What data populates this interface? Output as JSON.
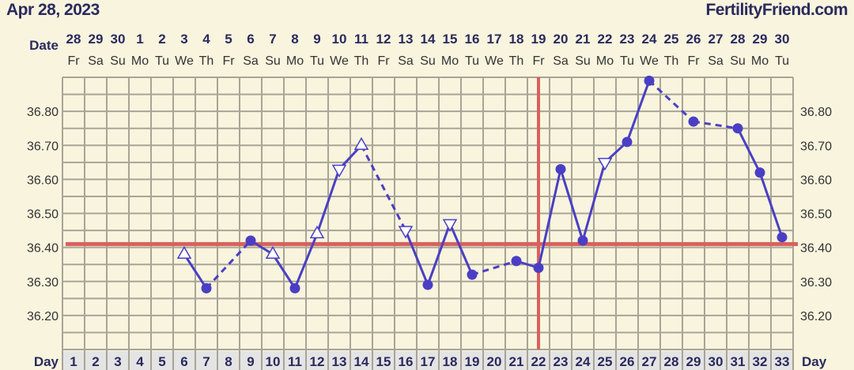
{
  "header": {
    "date": "Apr 28, 2023",
    "brand": "FertilityFriend.com"
  },
  "chart_data": {
    "type": "line",
    "row_labels": {
      "date": "Date",
      "day": "Day"
    },
    "dates": [
      "28",
      "29",
      "30",
      "1",
      "2",
      "3",
      "4",
      "5",
      "6",
      "7",
      "8",
      "9",
      "10",
      "11",
      "12",
      "13",
      "14",
      "15",
      "16",
      "17",
      "18",
      "19",
      "20",
      "21",
      "22",
      "23",
      "24",
      "25",
      "26",
      "27",
      "28",
      "29",
      "30"
    ],
    "weekdays": [
      "Fr",
      "Sa",
      "Su",
      "Mo",
      "Tu",
      "We",
      "Th",
      "Fr",
      "Sa",
      "Su",
      "Mo",
      "Tu",
      "We",
      "Th",
      "Fr",
      "Sa",
      "Su",
      "Mo",
      "Tu",
      "We",
      "Th",
      "Fr",
      "Sa",
      "Su",
      "Mo",
      "Tu",
      "We",
      "Th",
      "Fr",
      "Sa",
      "Su",
      "Mo",
      "Tu"
    ],
    "days": [
      1,
      2,
      3,
      4,
      5,
      6,
      7,
      8,
      9,
      10,
      11,
      12,
      13,
      14,
      15,
      16,
      17,
      18,
      19,
      20,
      21,
      22,
      23,
      24,
      25,
      26,
      27,
      28,
      29,
      30,
      31,
      32,
      33
    ],
    "yticks": [
      "36.20",
      "36.30",
      "36.40",
      "36.50",
      "36.60",
      "36.70",
      "36.80"
    ],
    "ylim": [
      36.1,
      36.9
    ],
    "grid": true,
    "coverline": 36.41,
    "ovulation_day": 22,
    "points": [
      {
        "day": 6,
        "temp": 36.38,
        "marker": "triangle-up"
      },
      {
        "day": 7,
        "temp": 36.28,
        "marker": "dot"
      },
      {
        "day": 9,
        "temp": 36.42,
        "marker": "dot"
      },
      {
        "day": 10,
        "temp": 36.38,
        "marker": "triangle-up"
      },
      {
        "day": 11,
        "temp": 36.28,
        "marker": "dot"
      },
      {
        "day": 12,
        "temp": 36.44,
        "marker": "triangle-up"
      },
      {
        "day": 13,
        "temp": 36.63,
        "marker": "triangle-down"
      },
      {
        "day": 14,
        "temp": 36.7,
        "marker": "triangle-up"
      },
      {
        "day": 16,
        "temp": 36.45,
        "marker": "triangle-down"
      },
      {
        "day": 17,
        "temp": 36.29,
        "marker": "dot"
      },
      {
        "day": 18,
        "temp": 36.47,
        "marker": "triangle-down"
      },
      {
        "day": 19,
        "temp": 36.32,
        "marker": "dot"
      },
      {
        "day": 21,
        "temp": 36.36,
        "marker": "dot"
      },
      {
        "day": 22,
        "temp": 36.34,
        "marker": "dot"
      },
      {
        "day": 23,
        "temp": 36.63,
        "marker": "dot"
      },
      {
        "day": 24,
        "temp": 36.42,
        "marker": "dot"
      },
      {
        "day": 25,
        "temp": 36.65,
        "marker": "triangle-down"
      },
      {
        "day": 26,
        "temp": 36.71,
        "marker": "dot"
      },
      {
        "day": 27,
        "temp": 36.89,
        "marker": "dot"
      },
      {
        "day": 29,
        "temp": 36.77,
        "marker": "dot"
      },
      {
        "day": 31,
        "temp": 36.75,
        "marker": "dot"
      },
      {
        "day": 32,
        "temp": 36.62,
        "marker": "dot"
      },
      {
        "day": 33,
        "temp": 36.43,
        "marker": "dot"
      }
    ],
    "colors": {
      "line": "#4a3fc4",
      "reference": "#d9605c",
      "grid": "#a8a496",
      "background": "#f8f4de",
      "day_cell": "#e4e4e4",
      "text": "#2a2a5e"
    }
  }
}
